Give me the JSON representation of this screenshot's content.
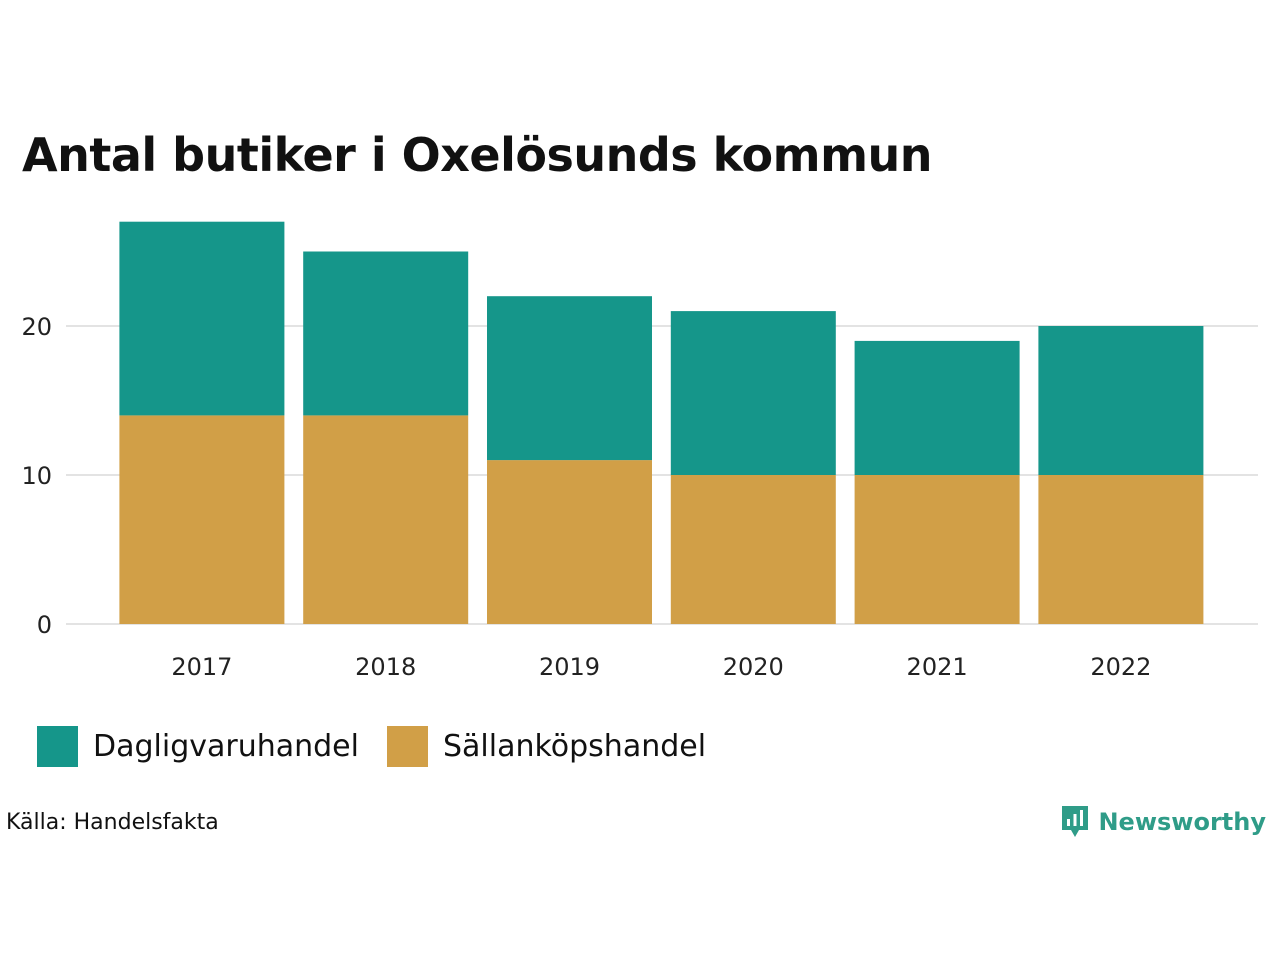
{
  "colors": {
    "dagligvaruhandel": "#15968a",
    "sallankopshandel": "#d19f47",
    "gridline": "#e3e3e3",
    "brand": "#2f9c88"
  },
  "chart_data": {
    "type": "bar",
    "stacked": true,
    "title": "Antal butiker i Oxelösunds kommun",
    "xlabel": "",
    "ylabel": "",
    "categories": [
      "2017",
      "2018",
      "2019",
      "2020",
      "2021",
      "2022"
    ],
    "series": [
      {
        "name": "Sällanköpshandel",
        "values": [
          14,
          14,
          11,
          10,
          10,
          10
        ],
        "color": "#d19f47"
      },
      {
        "name": "Dagligvaruhandel",
        "values": [
          13,
          11,
          11,
          11,
          9,
          10
        ],
        "color": "#15968a"
      }
    ],
    "ylim": [
      0,
      27
    ],
    "yticks": [
      0,
      10,
      20
    ],
    "grid": true,
    "legend_position": "bottom-left"
  },
  "legend": {
    "items": [
      {
        "label": "Dagligvaruhandel",
        "color": "#15968a"
      },
      {
        "label": "Sällanköpshandel",
        "color": "#d19f47"
      }
    ]
  },
  "footer": {
    "source": "Källa: Handelsfakta",
    "brand": "Newsworthy",
    "brand_icon": "bar-chart-speech-bubble-icon"
  }
}
